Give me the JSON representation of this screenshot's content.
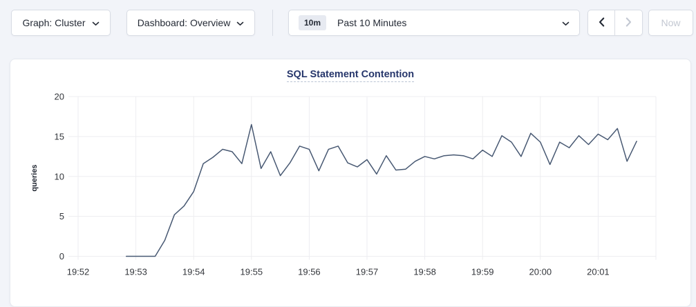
{
  "toolbar": {
    "graph_dropdown": {
      "label": "Graph: Cluster"
    },
    "dashboard_dropdown": {
      "label": "Dashboard: Overview"
    },
    "time_picker": {
      "badge": "10m",
      "label": "Past 10 Minutes"
    },
    "now_button": {
      "label": "Now",
      "disabled": true
    },
    "back_button": {
      "disabled": false
    },
    "forward_button": {
      "disabled": true
    }
  },
  "panel": {
    "title": "SQL Statement Contention"
  },
  "chart_data": {
    "type": "line",
    "title": "SQL Statement Contention",
    "xlabel": "",
    "ylabel": "queries",
    "ylim": [
      0,
      20
    ],
    "yticks": [
      0,
      5,
      10,
      15,
      20
    ],
    "grid": true,
    "legend": false,
    "x_domain_seconds": [
      0,
      600
    ],
    "x_domain_note": "seconds after 19:52:00; right edge = 20:02",
    "xticks": [
      {
        "s": 0,
        "label": "19:52"
      },
      {
        "s": 60,
        "label": "19:53"
      },
      {
        "s": 120,
        "label": "19:54"
      },
      {
        "s": 180,
        "label": "19:55"
      },
      {
        "s": 240,
        "label": "19:56"
      },
      {
        "s": 300,
        "label": "19:57"
      },
      {
        "s": 360,
        "label": "19:58"
      },
      {
        "s": 420,
        "label": "19:59"
      },
      {
        "s": 480,
        "label": "20:00"
      },
      {
        "s": 540,
        "label": "20:01"
      },
      {
        "s": 600,
        "label": ""
      }
    ],
    "series": [
      {
        "name": "queries",
        "color": "#475872",
        "x_start_seconds": 50,
        "x_step_seconds": 10,
        "values": [
          0,
          0,
          0,
          0,
          2,
          5.2,
          6.3,
          8.1,
          11.6,
          12.4,
          13.4,
          13.1,
          11.6,
          16.5,
          11,
          13.1,
          10.1,
          11.7,
          13.8,
          13.4,
          10.7,
          13.4,
          13.8,
          11.7,
          11.2,
          12.1,
          10.3,
          12.6,
          10.8,
          10.9,
          11.9,
          12.5,
          12.2,
          12.6,
          12.7,
          12.6,
          12.2,
          13.3,
          12.5,
          15.1,
          14.3,
          12.5,
          15.4,
          14.3,
          11.5,
          14.3,
          13.6,
          15.1,
          14,
          15.3,
          14.6,
          16,
          11.9,
          14.4
        ]
      }
    ]
  },
  "colors": {
    "page_bg": "#f2f4f9",
    "panel_bg": "#ffffff",
    "control_border": "#d8dce4",
    "badge_bg": "#e7eaf1",
    "text_dark": "#242a35",
    "title_blue": "#26366b",
    "line": "#475872",
    "grid": "#ededf0",
    "axis_text": "#33363b",
    "disabled": "#c3c8d2"
  }
}
